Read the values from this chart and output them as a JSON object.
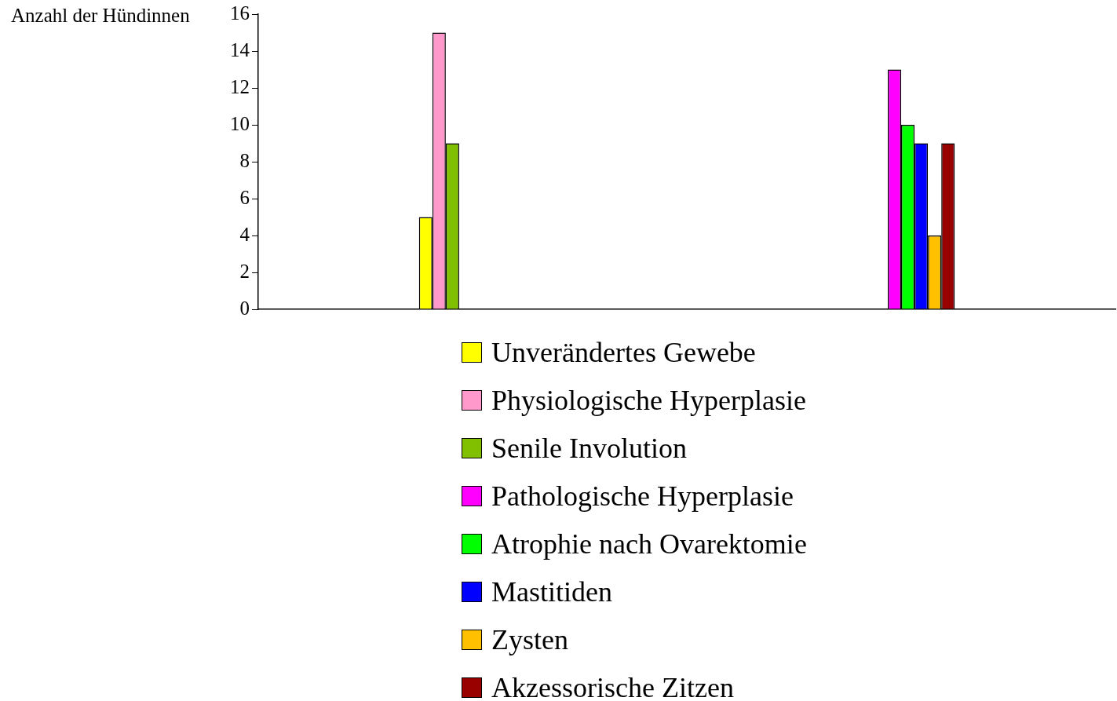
{
  "chart_data": {
    "type": "bar",
    "ylabel": "Anzahl der Hündinnen",
    "categories": [
      null,
      null
    ],
    "series": [
      {
        "name": "Unverändertes Gewebe",
        "color": "#ffff00",
        "values": [
          5,
          null
        ]
      },
      {
        "name": "Physiologische Hyperplasie",
        "color": "#ff99cc",
        "values": [
          15,
          null
        ]
      },
      {
        "name": "Senile Involution",
        "color": "#80c000",
        "values": [
          9,
          null
        ]
      },
      {
        "name": "Pathologische Hyperplasie",
        "color": "#ff00ff",
        "values": [
          null,
          13
        ]
      },
      {
        "name": "Atrophie nach Ovarektomie",
        "color": "#00ff00",
        "values": [
          null,
          10
        ]
      },
      {
        "name": "Mastitiden",
        "color": "#0000ff",
        "values": [
          null,
          9
        ]
      },
      {
        "name": "Zysten",
        "color": "#ffc000",
        "values": [
          null,
          4
        ]
      },
      {
        "name": "Akzessorische Zitzen",
        "color": "#990000",
        "values": [
          null,
          9
        ]
      }
    ],
    "ylim": [
      0,
      16
    ],
    "yticks": [
      0,
      2,
      4,
      6,
      8,
      10,
      12,
      14,
      16
    ],
    "grid": false,
    "legend": "bottom",
    "tick_labels": "y"
  }
}
